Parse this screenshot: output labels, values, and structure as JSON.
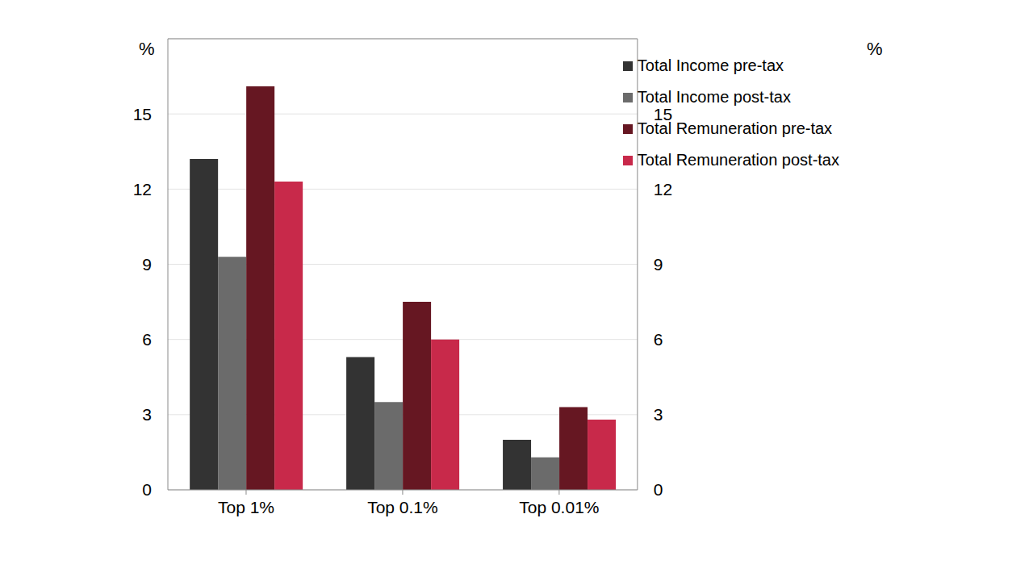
{
  "chart_data": {
    "type": "bar",
    "y_label": "%",
    "categories": [
      "Top 1%",
      "Top 0.1%",
      "Top 0.01%"
    ],
    "series": [
      {
        "name": "Total Income pre-tax",
        "color": "#333333",
        "values": [
          13.2,
          5.3,
          2.0
        ]
      },
      {
        "name": "Total Income post-tax",
        "color": "#6b6b6b",
        "values": [
          9.3,
          3.5,
          1.3
        ]
      },
      {
        "name": "Total Remuneration pre-tax",
        "color": "#661722",
        "values": [
          16.1,
          7.5,
          3.3
        ]
      },
      {
        "name": "Total Remuneration post-tax",
        "color": "#c8294a",
        "values": [
          12.3,
          6.0,
          2.8
        ]
      }
    ],
    "ylim": [
      0,
      18
    ],
    "yticks": [
      0,
      3,
      6,
      9,
      12,
      15
    ],
    "grid": true,
    "legend": "upper right"
  }
}
